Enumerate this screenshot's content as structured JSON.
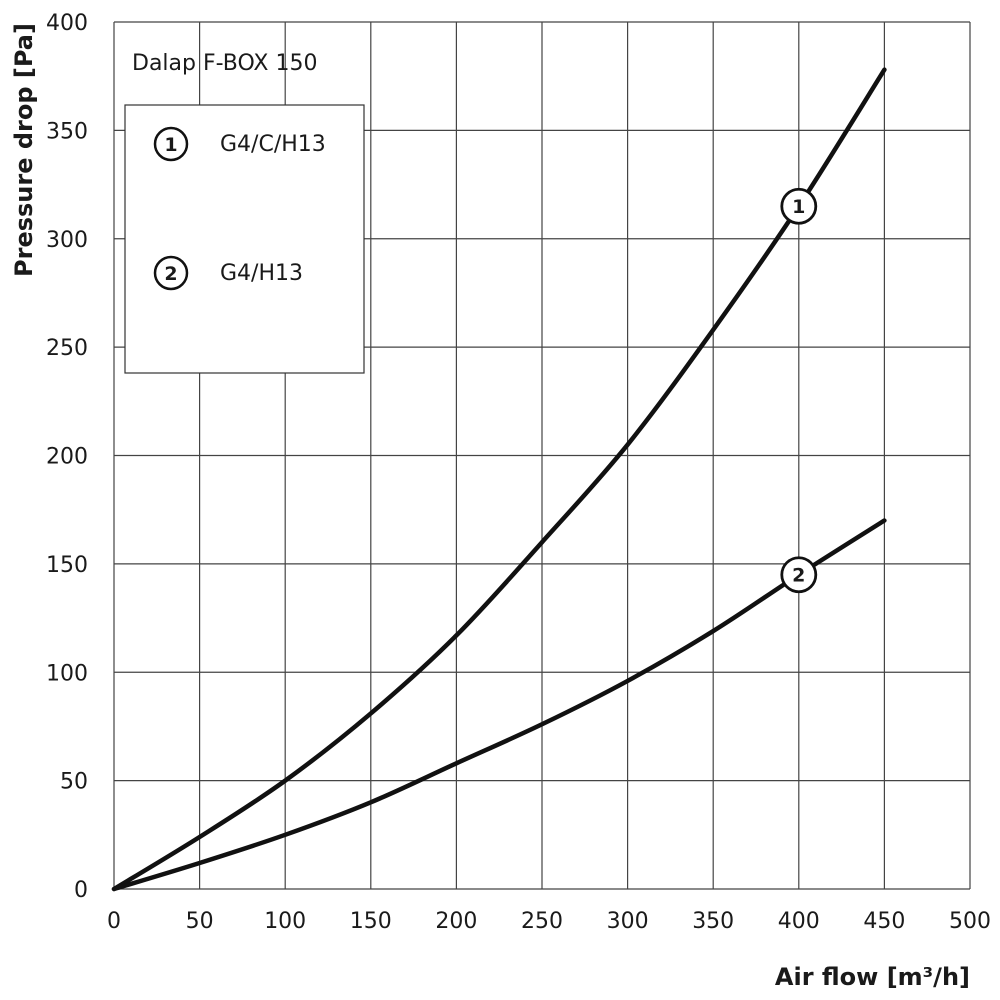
{
  "chart_data": {
    "type": "line",
    "title": "Dalap F-BOX 150",
    "xlabel": "Air flow [m³/h]",
    "ylabel": "Pressure drop [Pa]",
    "xlim": [
      0,
      500
    ],
    "ylim": [
      0,
      400
    ],
    "x_ticks": [
      0,
      50,
      100,
      150,
      200,
      250,
      300,
      350,
      400,
      450,
      500
    ],
    "y_ticks": [
      0,
      50,
      100,
      150,
      200,
      250,
      300,
      350,
      400
    ],
    "grid": true,
    "legend_position": "top-left",
    "series": [
      {
        "name": "G4/C/H13",
        "marker_label": "1",
        "marker_x": 400,
        "x": [
          0,
          50,
          100,
          150,
          200,
          250,
          300,
          350,
          400,
          450
        ],
        "y": [
          0,
          24,
          50,
          81,
          117,
          160,
          205,
          258,
          315,
          378
        ]
      },
      {
        "name": "G4/H13",
        "marker_label": "2",
        "marker_x": 400,
        "x": [
          0,
          50,
          100,
          150,
          200,
          250,
          300,
          350,
          400,
          450
        ],
        "y": [
          0,
          12,
          25,
          40,
          58,
          76,
          96,
          119,
          145,
          170
        ]
      }
    ]
  }
}
